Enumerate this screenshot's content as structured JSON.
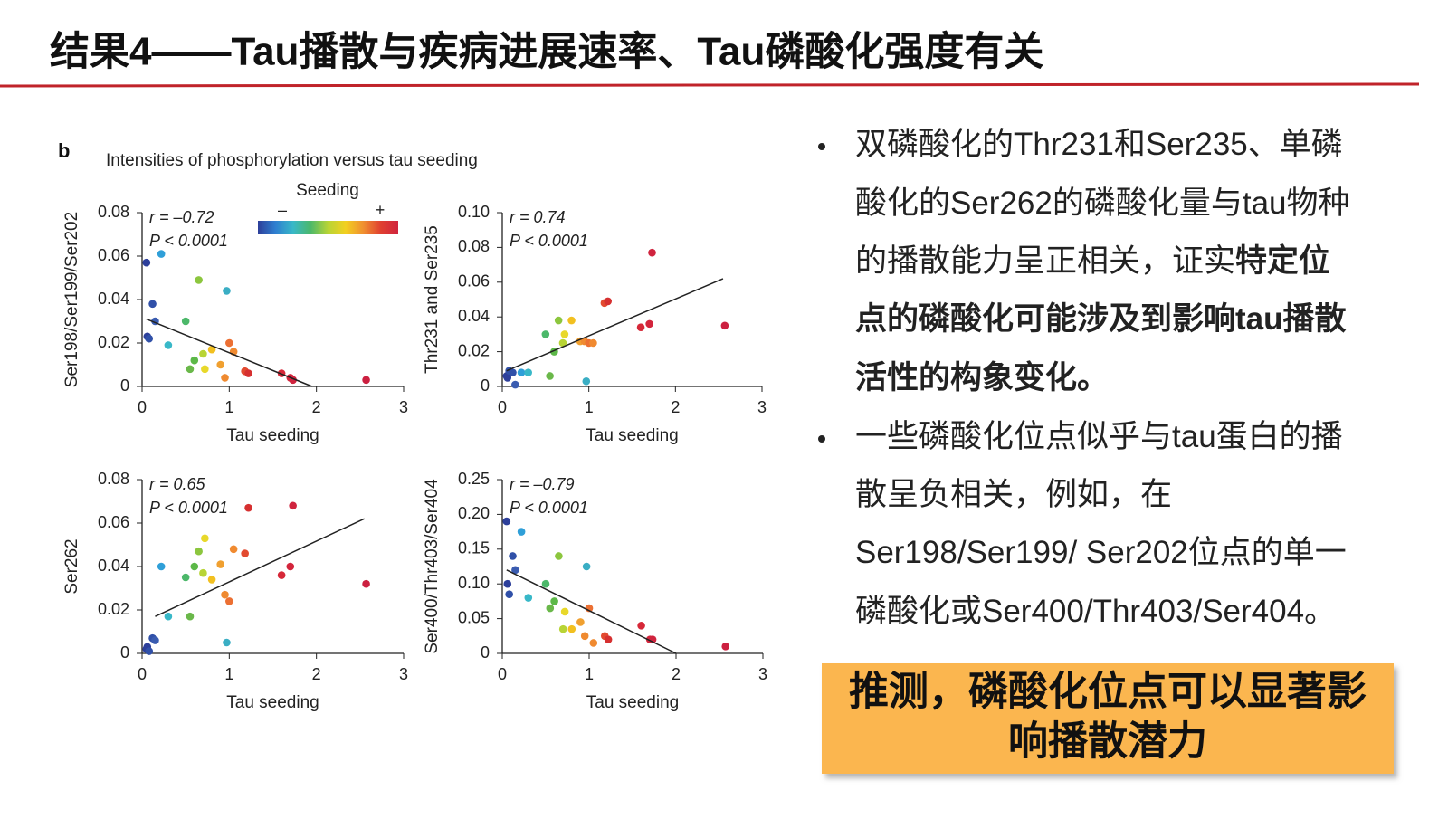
{
  "header": {
    "title": "结果4——Tau播散与疾病进展速率、Tau磷酸化强度有关"
  },
  "figure": {
    "panel_label": "b",
    "title": "Intensities of phosphorylation versus tau seeding",
    "colorbar": {
      "title": "Seeding",
      "low": "–",
      "high": "+",
      "colors": [
        "#2d3f9a",
        "#2f7fd0",
        "#38b8c8",
        "#4cb86a",
        "#b8d435",
        "#f2d020",
        "#f09030",
        "#e04030",
        "#d0243e"
      ]
    }
  },
  "chart_data": [
    {
      "type": "scatter",
      "xlabel": "Tau seeding",
      "ylabel": "Ser198/Ser199/Ser202",
      "annotations": [
        "r = –0.72",
        "P < 0.0001"
      ],
      "xlim": [
        0,
        3
      ],
      "xticks": [
        0,
        1,
        2,
        3
      ],
      "ylim": [
        0,
        0.08
      ],
      "yticks": [
        0,
        0.02,
        0.04,
        0.06,
        0.08
      ],
      "points": {
        "x": [
          0.05,
          0.06,
          0.08,
          0.12,
          0.15,
          0.22,
          0.3,
          0.5,
          0.55,
          0.6,
          0.65,
          0.7,
          0.72,
          0.8,
          0.9,
          0.95,
          1.0,
          1.05,
          1.18,
          1.22,
          1.6,
          1.7,
          1.73,
          2.57,
          0.97
        ],
        "values": [
          0.057,
          0.023,
          0.022,
          0.038,
          0.03,
          0.061,
          0.019,
          0.03,
          0.008,
          0.012,
          0.049,
          0.015,
          0.008,
          0.017,
          0.01,
          0.004,
          0.02,
          0.016,
          0.007,
          0.006,
          0.006,
          0.004,
          0.003,
          0.003,
          0.044
        ],
        "colors": [
          "#2d3f9a",
          "#2d3f9a",
          "#3050a8",
          "#3050a8",
          "#3a5cb0",
          "#2f9fd8",
          "#38b8c8",
          "#4cb86a",
          "#6ab84a",
          "#5cb848",
          "#8cc63e",
          "#b8d435",
          "#e8d82a",
          "#f2c020",
          "#f0a030",
          "#ef8a30",
          "#ec7033",
          "#f08a30",
          "#e24a30",
          "#d63030",
          "#d62838",
          "#d3253c",
          "#d0243e",
          "#cc2040",
          "#3aaec4"
        ]
      },
      "fit_line": {
        "x": [
          0.05,
          1.95
        ],
        "values": [
          0.031,
          0
        ],
        "color": "#222222"
      }
    },
    {
      "type": "scatter",
      "xlabel": "Tau seeding",
      "ylabel": "Thr231 and Ser235",
      "annotations": [
        "r = 0.74",
        "P < 0.0001"
      ],
      "xlim": [
        0,
        3
      ],
      "xticks": [
        0,
        1,
        2,
        3
      ],
      "ylim": [
        0,
        0.1
      ],
      "yticks": [
        0,
        0.02,
        0.04,
        0.06,
        0.08,
        {
          "value": 0.1,
          "label": "0.10"
        }
      ],
      "points": {
        "x": [
          0.05,
          0.06,
          0.08,
          0.12,
          0.15,
          0.22,
          0.3,
          0.5,
          0.55,
          0.6,
          0.65,
          0.7,
          0.72,
          0.8,
          0.9,
          0.95,
          1.0,
          1.05,
          1.18,
          1.22,
          1.6,
          1.7,
          1.73,
          2.57,
          0.97
        ],
        "values": [
          0.006,
          0.005,
          0.009,
          0.008,
          0.001,
          0.008,
          0.008,
          0.03,
          0.006,
          0.02,
          0.038,
          0.025,
          0.03,
          0.038,
          0.026,
          0.026,
          0.025,
          0.025,
          0.048,
          0.049,
          0.034,
          0.036,
          0.077,
          0.035,
          0.003
        ],
        "colors": [
          "#2d3f9a",
          "#2d3f9a",
          "#3050a8",
          "#3050a8",
          "#3a5cb0",
          "#2f9fd8",
          "#38b8c8",
          "#4cb86a",
          "#6ab84a",
          "#5cb848",
          "#8cc63e",
          "#b8d435",
          "#e8d82a",
          "#f2c020",
          "#f0a030",
          "#ef8a30",
          "#ec7033",
          "#f08a30",
          "#e24a30",
          "#d63030",
          "#d62838",
          "#d3253c",
          "#d0243e",
          "#cc2040",
          "#3aaec4"
        ]
      },
      "fit_line": {
        "x": [
          0.05,
          2.55
        ],
        "values": [
          0.009,
          0.062
        ],
        "color": "#222222"
      }
    },
    {
      "type": "scatter",
      "xlabel": "Tau seeding",
      "ylabel": "Ser262",
      "annotations": [
        "r = 0.65",
        "P < 0.0001"
      ],
      "xlim": [
        0,
        3
      ],
      "xticks": [
        0,
        1,
        2,
        3
      ],
      "ylim": [
        0,
        0.08
      ],
      "yticks": [
        0,
        0.02,
        0.04,
        0.06,
        0.08
      ],
      "points": {
        "x": [
          0.05,
          0.06,
          0.08,
          0.12,
          0.15,
          0.22,
          0.3,
          0.5,
          0.55,
          0.6,
          0.65,
          0.7,
          0.72,
          0.8,
          0.9,
          0.95,
          1.0,
          1.05,
          1.18,
          1.22,
          1.6,
          1.7,
          1.73,
          2.57,
          0.97
        ],
        "values": [
          0.002,
          0.003,
          0.001,
          0.007,
          0.006,
          0.04,
          0.017,
          0.035,
          0.017,
          0.04,
          0.047,
          0.037,
          0.053,
          0.034,
          0.041,
          0.027,
          0.024,
          0.048,
          0.046,
          0.067,
          0.036,
          0.04,
          0.068,
          0.032,
          0.005
        ],
        "colors": [
          "#2d3f9a",
          "#2d3f9a",
          "#3050a8",
          "#3050a8",
          "#3a5cb0",
          "#2f9fd8",
          "#38b8c8",
          "#4cb86a",
          "#6ab84a",
          "#5cb848",
          "#8cc63e",
          "#b8d435",
          "#e8d82a",
          "#f2c020",
          "#f0a030",
          "#ef8a30",
          "#ec7033",
          "#f08a30",
          "#e24a30",
          "#d63030",
          "#d62838",
          "#d3253c",
          "#d0243e",
          "#cc2040",
          "#3aaec4"
        ]
      },
      "fit_line": {
        "x": [
          0.15,
          2.55
        ],
        "values": [
          0.017,
          0.062
        ],
        "color": "#222222"
      }
    },
    {
      "type": "scatter",
      "xlabel": "Tau seeding",
      "ylabel": "Ser400/Thr403/Ser404",
      "annotations": [
        "r = –0.79",
        "P < 0.0001"
      ],
      "xlim": [
        0,
        3
      ],
      "xticks": [
        0,
        1,
        2,
        3
      ],
      "ylim": [
        0,
        0.25
      ],
      "yticks": [
        0,
        0.05,
        {
          "value": 0.1,
          "label": "0.10"
        },
        0.15,
        {
          "value": 0.2,
          "label": "0.20"
        },
        0.25
      ],
      "points": {
        "x": [
          0.05,
          0.06,
          0.08,
          0.12,
          0.15,
          0.22,
          0.3,
          0.5,
          0.55,
          0.6,
          0.65,
          0.7,
          0.72,
          0.8,
          0.9,
          0.95,
          1.0,
          1.05,
          1.18,
          1.22,
          1.6,
          1.7,
          1.73,
          2.57,
          0.97
        ],
        "values": [
          0.19,
          0.1,
          0.085,
          0.14,
          0.12,
          0.175,
          0.08,
          0.1,
          0.065,
          0.075,
          0.14,
          0.035,
          0.06,
          0.035,
          0.045,
          0.025,
          0.065,
          0.015,
          0.025,
          0.02,
          0.04,
          0.02,
          0.02,
          0.01,
          0.125
        ],
        "colors": [
          "#2d3f9a",
          "#2d3f9a",
          "#3050a8",
          "#3050a8",
          "#3a5cb0",
          "#2f9fd8",
          "#38b8c8",
          "#4cb86a",
          "#6ab84a",
          "#5cb848",
          "#8cc63e",
          "#b8d435",
          "#e8d82a",
          "#f2c020",
          "#f0a030",
          "#ef8a30",
          "#ec7033",
          "#f08a30",
          "#e24a30",
          "#d63030",
          "#d62838",
          "#d3253c",
          "#d0243e",
          "#cc2040",
          "#3aaec4"
        ]
      },
      "fit_line": {
        "x": [
          0.05,
          2.0
        ],
        "values": [
          0.12,
          0
        ],
        "color": "#222222"
      }
    }
  ],
  "bullets": [
    {
      "lines": [
        [
          {
            "text": "双磷酸化的Thr231和Ser235、单磷",
            "bold": false
          }
        ],
        [
          {
            "text": "酸化的Ser262的磷酸化量与tau物种",
            "bold": false
          }
        ],
        [
          {
            "text": "的播散能力呈正相关，证实",
            "bold": false
          },
          {
            "text": "特定位",
            "bold": true
          }
        ],
        [
          {
            "text": "点的磷酸化可能涉及到影响tau播散",
            "bold": true
          }
        ],
        [
          {
            "text": "活性的构象变化。",
            "bold": true
          }
        ]
      ]
    },
    {
      "lines": [
        [
          {
            "text": "一些磷酸化位点似乎与tau蛋白的播",
            "bold": false
          }
        ],
        [
          {
            "text": "散呈负相关，例如，在",
            "bold": false
          }
        ],
        [
          {
            "text": "Ser198/Ser199/ Ser202位点的单一",
            "bold": false
          }
        ],
        [
          {
            "text": "磷酸化或Ser400/Thr403/Ser404。",
            "bold": false
          }
        ]
      ]
    }
  ],
  "conclusion": {
    "lines": [
      "推测，磷酸化位点可以显著影",
      "响播散潜力"
    ]
  }
}
